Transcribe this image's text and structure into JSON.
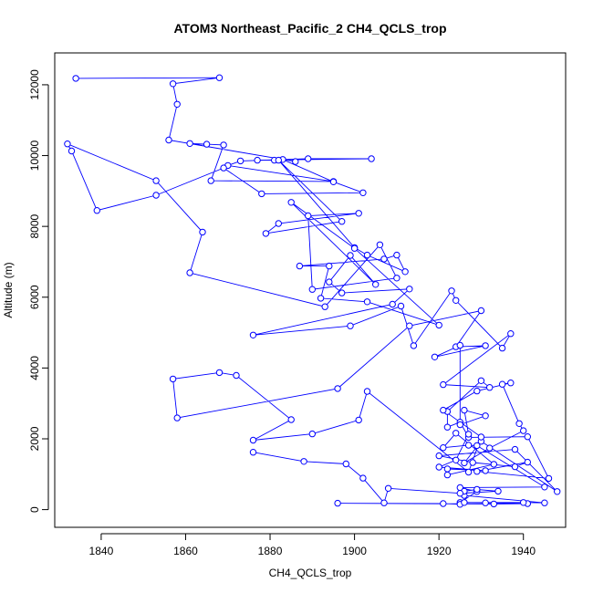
{
  "chart_data": {
    "type": "line",
    "title": "ATOM3 Northeast_Pacific_2 CH4_QCLS_trop",
    "xlabel": "CH4_QCLS_trop",
    "ylabel": "Altitude (m)",
    "xlim": [
      1829,
      1950
    ],
    "ylim": [
      -500,
      12900
    ],
    "xticks": [
      1840,
      1860,
      1880,
      1900,
      1920,
      1940
    ],
    "yticks": [
      0,
      2000,
      4000,
      6000,
      8000,
      10000,
      12000
    ],
    "grid": false,
    "series_color": "#0000ff",
    "x": [
      1834,
      1868,
      1857,
      1858,
      1856,
      1886,
      1861,
      1865,
      1869,
      1866,
      1895,
      1870,
      1873,
      1889,
      1904,
      1877,
      1881,
      1883,
      1895,
      1902,
      1878,
      1869,
      1853,
      1839,
      1833,
      1832,
      1853,
      1864,
      1861,
      1893,
      1906,
      1910,
      1890,
      1889,
      1901,
      1882,
      1879,
      1897,
      1882,
      1900,
      1903,
      1912,
      1910,
      1907,
      1887,
      1894,
      1892,
      1903,
      1920,
      1900,
      1885,
      1905,
      1899,
      1894,
      1897,
      1913,
      1909,
      1876,
      1899,
      1911,
      1914,
      1923,
      1924,
      1935,
      1937,
      1921,
      1932,
      1930,
      1922,
      1922,
      1925,
      1927,
      1941,
      1946,
      1929,
      1941,
      1938,
      1928,
      1920,
      1938,
      1948,
      1930,
      1926,
      1932,
      1940,
      1939,
      1935,
      1937,
      1929,
      1921,
      1930,
      1927,
      1903,
      1901,
      1890,
      1876,
      1885,
      1872,
      1868,
      1857,
      1858,
      1896,
      1913,
      1930,
      1924,
      1931,
      1919,
      1925,
      1925,
      1931,
      1926,
      1927,
      1924,
      1920,
      1931,
      1922,
      1922,
      1933,
      1924,
      1921,
      1927,
      1929,
      1945,
      1925,
      1929,
      1925,
      1931,
      1941,
      1933,
      1896,
      1921,
      1925,
      1926,
      1940,
      1945,
      1926,
      1926,
      1929,
      1934,
      1925,
      1908,
      1907,
      1902,
      1898,
      1888,
      1876
    ],
    "y": [
      12180,
      12200,
      12030,
      11450,
      10440,
      9830,
      10340,
      10320,
      10300,
      9290,
      9270,
      9720,
      9850,
      9910,
      9910,
      9870,
      9870,
      9890,
      9260,
      8950,
      8920,
      9650,
      8880,
      8450,
      10130,
      10330,
      9290,
      7840,
      6690,
      5730,
      7480,
      6540,
      6220,
      8300,
      8370,
      8080,
      7800,
      8140,
      9870,
      7400,
      7190,
      6720,
      7190,
      7080,
      6880,
      6880,
      5970,
      5870,
      5210,
      7380,
      8680,
      6360,
      7180,
      6430,
      6120,
      6230,
      5800,
      4930,
      5190,
      5750,
      4630,
      6180,
      5910,
      4560,
      4970,
      3530,
      3450,
      3640,
      2770,
      2330,
      2470,
      2040,
      2060,
      880,
      1080,
      1340,
      1210,
      1330,
      1520,
      1700,
      510,
      1930,
      1320,
      1740,
      2230,
      2430,
      3540,
      3580,
      3350,
      2810,
      2050,
      1060,
      3340,
      2530,
      2140,
      1960,
      2540,
      3790,
      3870,
      3690,
      2590,
      3420,
      5190,
      5620,
      4600,
      4630,
      4310,
      4640,
      2400,
      2650,
      2810,
      2130,
      1400,
      1200,
      1100,
      1150,
      980,
      1280,
      2160,
      1750,
      1820,
      1810,
      640,
      620,
      510,
      200,
      190,
      170,
      160,
      180,
      170,
      150,
      200,
      200,
      190,
      400,
      520,
      570,
      520,
      460,
      600,
      190,
      890,
      1290,
      1360,
      1620
    ]
  }
}
